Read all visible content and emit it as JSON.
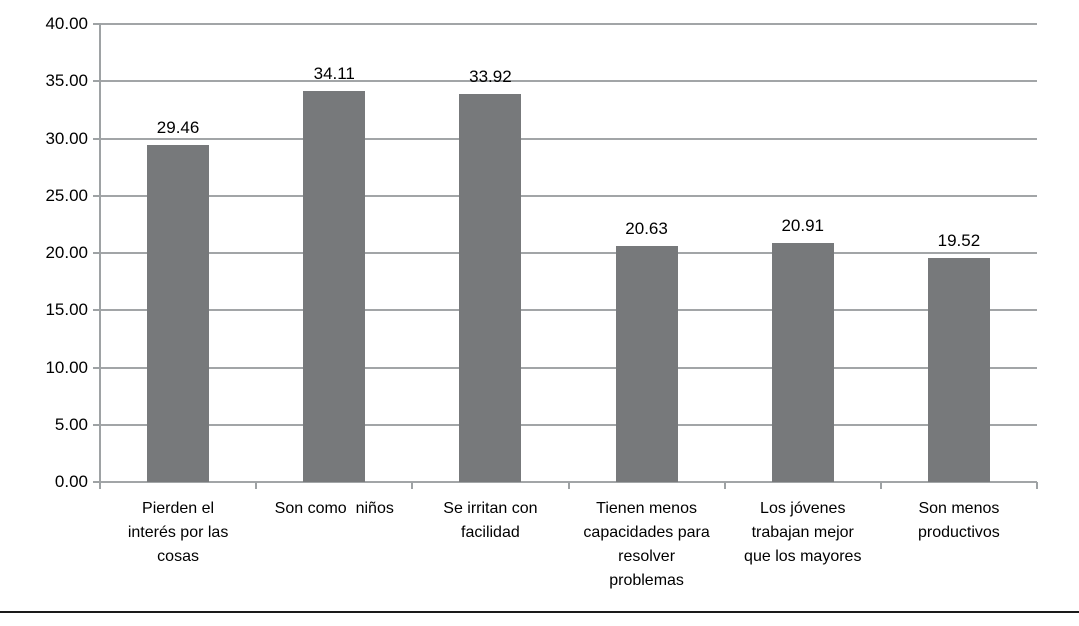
{
  "figure": {
    "background": "#ffffff",
    "bottom_rule_color": "#1a1a1a"
  },
  "chart_data": {
    "type": "bar",
    "title": "",
    "xlabel": "",
    "ylabel": "",
    "categories": [
      "Pierden el\ninterés por las\ncosas",
      "Son como  niños",
      "Se irritan con\nfacilidad",
      "Tienen menos\ncapacidades para\nresolver\nproblemas",
      "Los jóvenes\ntrabajan mejor\nque los mayores",
      "Son menos\nproductivos"
    ],
    "values": [
      29.46,
      34.11,
      33.92,
      20.63,
      20.91,
      19.52
    ],
    "value_labels": [
      "29.46",
      "34.11",
      "33.92",
      "20.63",
      "20.91",
      "19.52"
    ],
    "ylim": [
      0,
      40
    ],
    "y_tick_step": 5,
    "y_tick_labels": [
      "0.00",
      "5.00",
      "10.00",
      "15.00",
      "20.00",
      "25.00",
      "30.00",
      "35.00",
      "40.00"
    ],
    "grid": true,
    "legend": "none",
    "bar_color": "#77797b",
    "gridline_color": "#a2a5a7",
    "axis_color": "#9ea2a4",
    "text_color": "#000000"
  }
}
